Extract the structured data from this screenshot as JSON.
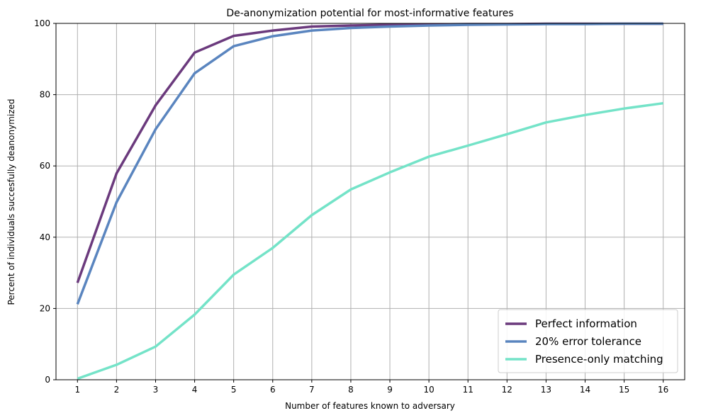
{
  "chart_data": {
    "type": "line",
    "title": "De-anonymization potential for most-informative features",
    "xlabel": "Number of features known to adversary",
    "ylabel": "Percent of individuals succesfully deanonymized",
    "x": [
      1,
      2,
      3,
      4,
      5,
      6,
      7,
      8,
      9,
      10,
      11,
      12,
      13,
      14,
      15,
      16
    ],
    "xlim": [
      0.45,
      16.55
    ],
    "ylim": [
      0,
      100
    ],
    "xticks": [
      "1",
      "2",
      "3",
      "4",
      "5",
      "6",
      "7",
      "8",
      "9",
      "10",
      "11",
      "12",
      "13",
      "14",
      "15",
      "16"
    ],
    "yticks": [
      "0",
      "20",
      "40",
      "60",
      "80",
      "100"
    ],
    "grid": true,
    "legend_position": "lower-right",
    "series": [
      {
        "name": "Perfect information",
        "color": "#6b3a7d",
        "values": [
          27.2,
          57.9,
          77.0,
          91.8,
          96.5,
          98.0,
          99.1,
          99.4,
          99.6,
          99.7,
          99.8,
          99.8,
          99.9,
          99.9,
          99.9,
          99.9
        ]
      },
      {
        "name": "20% error tolerance",
        "color": "#5a85bf",
        "values": [
          21.2,
          49.8,
          70.3,
          86.0,
          93.6,
          96.4,
          98.0,
          98.7,
          99.1,
          99.4,
          99.6,
          99.7,
          99.8,
          99.8,
          99.9,
          99.9
        ]
      },
      {
        "name": "Presence-only matching",
        "color": "#74e3c8",
        "values": [
          0.3,
          4.2,
          9.3,
          18.3,
          29.5,
          37.0,
          46.2,
          53.4,
          58.2,
          62.6,
          65.7,
          68.9,
          72.2,
          74.3,
          76.1,
          77.6
        ]
      }
    ]
  }
}
